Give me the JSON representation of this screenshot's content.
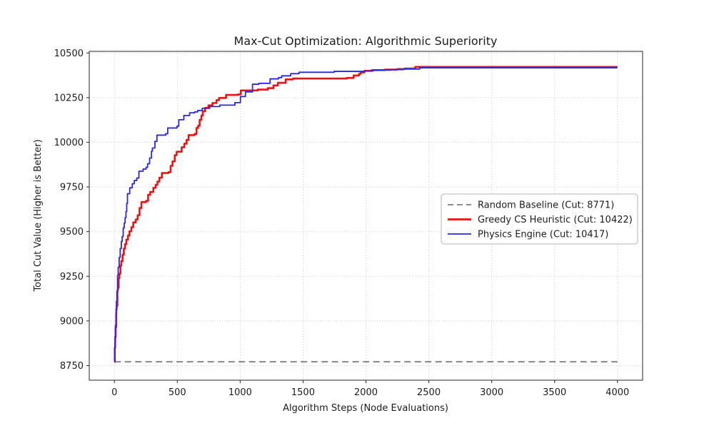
{
  "chart_data": {
    "type": "line",
    "title": "Max-Cut Optimization: Algorithmic Superiority",
    "xlabel": "Algorithm Steps (Node Evaluations)",
    "ylabel": "Total Cut Value (Higher is Better)",
    "xlim": [
      -200,
      4200
    ],
    "ylim": [
      8668,
      10509
    ],
    "x_ticks": [
      0,
      500,
      1000,
      1500,
      2000,
      2500,
      3000,
      3500,
      4000
    ],
    "y_ticks": [
      8750,
      9000,
      9250,
      9500,
      9750,
      10000,
      10250,
      10500
    ],
    "grid": "dotted",
    "legend_position": "center-right",
    "colors": {
      "baseline": "#7f7f7f",
      "greedy": "#e61414",
      "physics": "#2828e0",
      "gridline": "#c9c9c9",
      "spine": "#262626",
      "legend_edge": "#b4b4b4"
    },
    "series": [
      {
        "id": "baseline",
        "label": "Random Baseline (Cut: 8771)",
        "final_cut": 8771,
        "color": "#7f7f7f",
        "style": "dashed",
        "width": 1.8,
        "points": [
          [
            0,
            8771
          ],
          [
            4000,
            8771
          ]
        ]
      },
      {
        "id": "greedy",
        "label": "Greedy CS Heuristic (Cut: 10422)",
        "final_cut": 10422,
        "color": "#e61414",
        "style": "solid",
        "width": 2.6,
        "points": [
          [
            0,
            8771
          ],
          [
            3,
            8850
          ],
          [
            6,
            8910
          ],
          [
            10,
            8965
          ],
          [
            15,
            9065
          ],
          [
            18,
            9085
          ],
          [
            24,
            9170
          ],
          [
            28,
            9185
          ],
          [
            34,
            9240
          ],
          [
            40,
            9265
          ],
          [
            48,
            9310
          ],
          [
            55,
            9335
          ],
          [
            65,
            9370
          ],
          [
            75,
            9405
          ],
          [
            85,
            9430
          ],
          [
            95,
            9455
          ],
          [
            108,
            9478
          ],
          [
            120,
            9502
          ],
          [
            135,
            9525
          ],
          [
            150,
            9552
          ],
          [
            170,
            9568
          ],
          [
            185,
            9592
          ],
          [
            200,
            9632
          ],
          [
            215,
            9665
          ],
          [
            252,
            9672
          ],
          [
            268,
            9706
          ],
          [
            285,
            9722
          ],
          [
            310,
            9745
          ],
          [
            328,
            9762
          ],
          [
            342,
            9780
          ],
          [
            358,
            9802
          ],
          [
            378,
            9828
          ],
          [
            430,
            9833
          ],
          [
            447,
            9868
          ],
          [
            462,
            9893
          ],
          [
            480,
            9928
          ],
          [
            495,
            9947
          ],
          [
            535,
            9972
          ],
          [
            556,
            9992
          ],
          [
            574,
            10013
          ],
          [
            590,
            10040
          ],
          [
            638,
            10047
          ],
          [
            653,
            10080
          ],
          [
            666,
            10093
          ],
          [
            678,
            10126
          ],
          [
            692,
            10150
          ],
          [
            703,
            10174
          ],
          [
            722,
            10193
          ],
          [
            748,
            10207
          ],
          [
            780,
            10220
          ],
          [
            812,
            10236
          ],
          [
            832,
            10248
          ],
          [
            888,
            10265
          ],
          [
            985,
            10268
          ],
          [
            1005,
            10290
          ],
          [
            1140,
            10295
          ],
          [
            1220,
            10303
          ],
          [
            1265,
            10318
          ],
          [
            1300,
            10333
          ],
          [
            1362,
            10352
          ],
          [
            1420,
            10357
          ],
          [
            1848,
            10360
          ],
          [
            1902,
            10374
          ],
          [
            1945,
            10383
          ],
          [
            1958,
            10391
          ],
          [
            1988,
            10400
          ],
          [
            2045,
            10404
          ],
          [
            2150,
            10407
          ],
          [
            2250,
            10410
          ],
          [
            2310,
            10413
          ],
          [
            2392,
            10422
          ],
          [
            4000,
            10422
          ]
        ]
      },
      {
        "id": "physics",
        "label": "Physics Engine (Cut: 10417)",
        "final_cut": 10417,
        "color": "#2828e0",
        "style": "solid",
        "width": 1.8,
        "points": [
          [
            0,
            8771
          ],
          [
            4,
            8880
          ],
          [
            8,
            8975
          ],
          [
            12,
            9040
          ],
          [
            16,
            9110
          ],
          [
            20,
            9165
          ],
          [
            25,
            9255
          ],
          [
            30,
            9300
          ],
          [
            38,
            9355
          ],
          [
            46,
            9405
          ],
          [
            55,
            9445
          ],
          [
            62,
            9472
          ],
          [
            70,
            9520
          ],
          [
            78,
            9548
          ],
          [
            85,
            9578
          ],
          [
            92,
            9612
          ],
          [
            98,
            9658
          ],
          [
            104,
            9712
          ],
          [
            122,
            9745
          ],
          [
            142,
            9768
          ],
          [
            158,
            9786
          ],
          [
            178,
            9800
          ],
          [
            195,
            9838
          ],
          [
            228,
            9850
          ],
          [
            252,
            9860
          ],
          [
            264,
            9880
          ],
          [
            280,
            9912
          ],
          [
            295,
            9950
          ],
          [
            302,
            9968
          ],
          [
            322,
            10005
          ],
          [
            338,
            10040
          ],
          [
            408,
            10048
          ],
          [
            424,
            10080
          ],
          [
            498,
            10090
          ],
          [
            512,
            10126
          ],
          [
            552,
            10150
          ],
          [
            598,
            10165
          ],
          [
            638,
            10170
          ],
          [
            662,
            10178
          ],
          [
            698,
            10190
          ],
          [
            758,
            10200
          ],
          [
            838,
            10208
          ],
          [
            958,
            10222
          ],
          [
            1002,
            10256
          ],
          [
            1042,
            10282
          ],
          [
            1098,
            10325
          ],
          [
            1148,
            10330
          ],
          [
            1238,
            10355
          ],
          [
            1305,
            10362
          ],
          [
            1330,
            10372
          ],
          [
            1402,
            10384
          ],
          [
            1468,
            10392
          ],
          [
            1748,
            10397
          ],
          [
            1995,
            10399
          ],
          [
            2058,
            10404
          ],
          [
            2198,
            10407
          ],
          [
            2298,
            10410
          ],
          [
            2428,
            10417
          ],
          [
            4000,
            10417
          ]
        ]
      }
    ]
  }
}
